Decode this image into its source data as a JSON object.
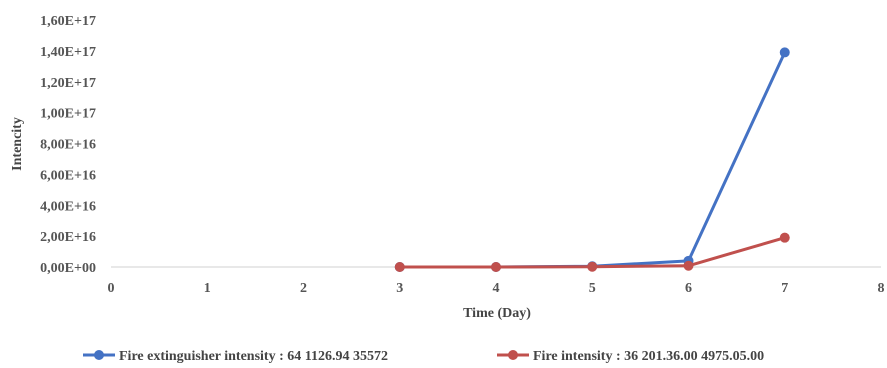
{
  "chart_data": {
    "type": "line",
    "xlabel": "Time (Day)",
    "ylabel": "Intencity",
    "xlim": [
      0,
      8
    ],
    "ylim": [
      0,
      1.6e+17
    ],
    "x_ticks": [
      "0",
      "1",
      "2",
      "3",
      "4",
      "5",
      "6",
      "7",
      "8"
    ],
    "y_ticks": [
      "0,00E+00",
      "2,00E+16",
      "4,00E+16",
      "6,00E+16",
      "8,00E+16",
      "1,00E+17",
      "1,20E+17",
      "1,40E+17",
      "1,60E+17"
    ],
    "grid": false,
    "legend": "bottom",
    "series": [
      {
        "name": "Fire extinguisher intensity :  64 1126.94 35572",
        "color": "#4472c4",
        "x": [
          3,
          4,
          5,
          6,
          7
        ],
        "y": [
          0,
          0,
          500000000000000.0,
          4000000000000000.0,
          1.39e+17
        ]
      },
      {
        "name": "Fire intensity :  36 201.36.00 4975.05.00",
        "color": "#c0504d",
        "x": [
          3,
          4,
          5,
          6,
          7
        ],
        "y": [
          0,
          0,
          200000000000000.0,
          800000000000000.0,
          1.9e+16
        ]
      }
    ]
  }
}
